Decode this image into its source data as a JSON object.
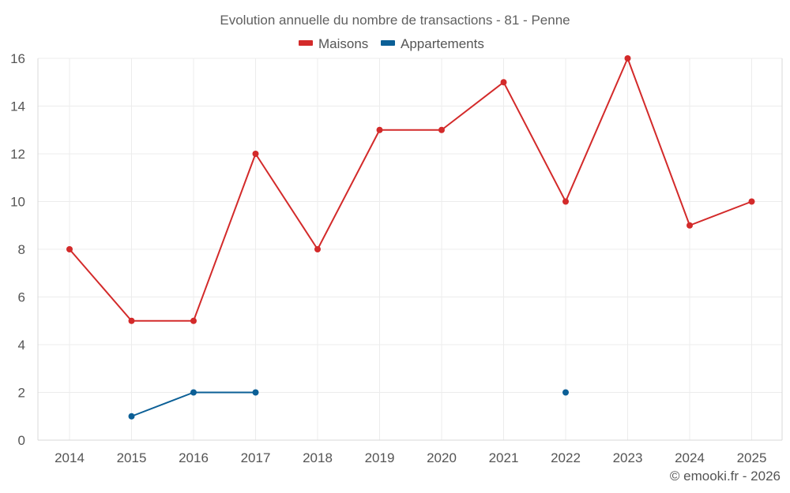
{
  "chart_data": {
    "type": "line",
    "title": "Evolution annuelle du nombre de transactions - 81 - Penne",
    "categories": [
      "2014",
      "2015",
      "2016",
      "2017",
      "2018",
      "2019",
      "2020",
      "2021",
      "2022",
      "2023",
      "2024",
      "2025"
    ],
    "ylim": [
      0,
      16
    ],
    "yticks": [
      0,
      2,
      4,
      6,
      8,
      10,
      12,
      14,
      16
    ],
    "grid": true,
    "legend_position": "top-center",
    "series": [
      {
        "name": "Maisons",
        "color": "#d32a2a",
        "values": [
          8,
          5,
          5,
          12,
          8,
          13,
          13,
          15,
          10,
          16,
          9,
          10
        ]
      },
      {
        "name": "Appartements",
        "color": "#0b5f96",
        "values": [
          null,
          1,
          2,
          2,
          null,
          null,
          null,
          null,
          2,
          null,
          null,
          null
        ]
      }
    ],
    "credit": "© emooki.fr - 2026"
  }
}
